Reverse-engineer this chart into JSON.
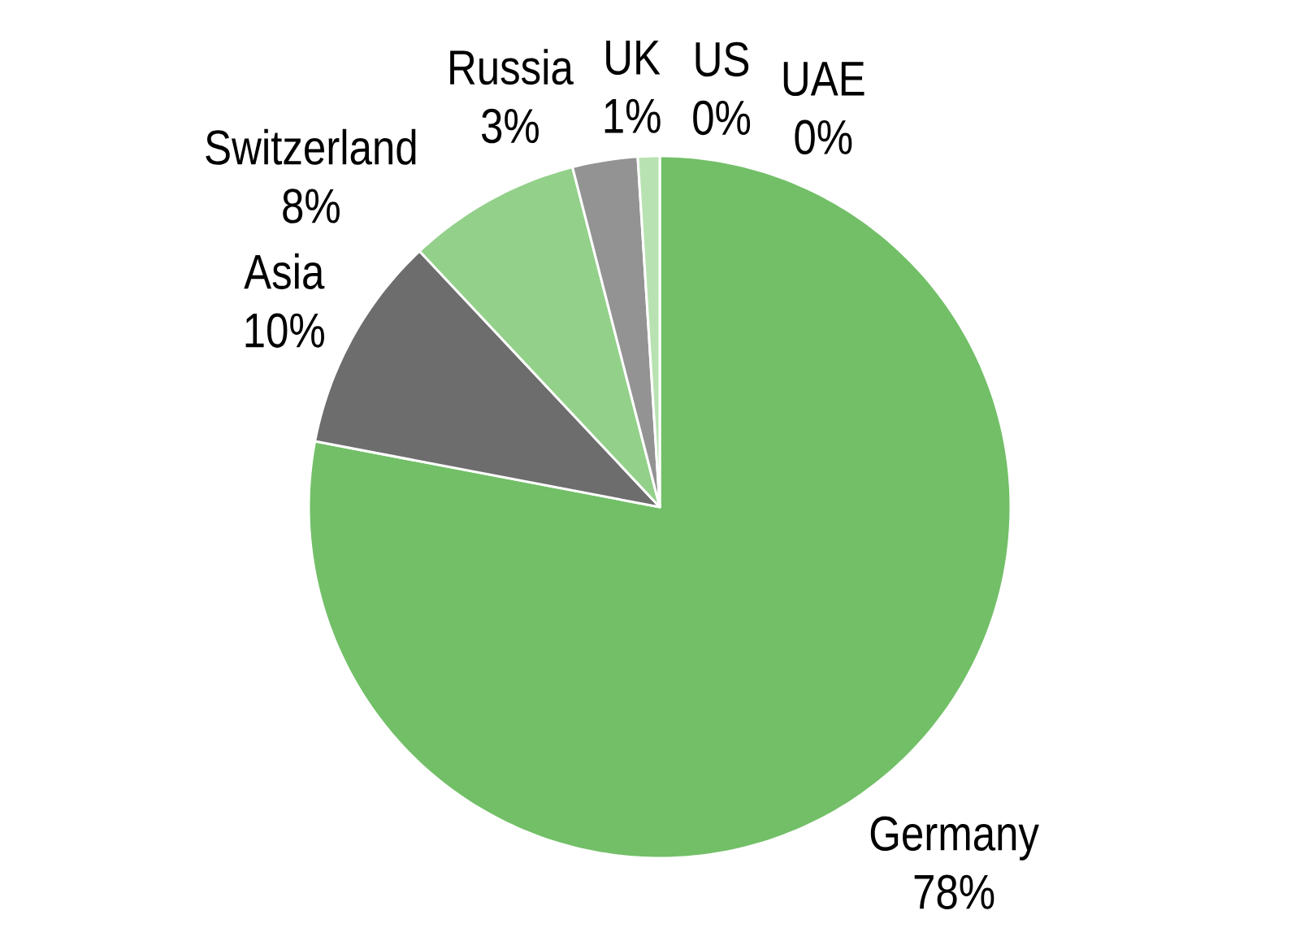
{
  "chart_data": {
    "type": "pie",
    "categories": [
      "Germany",
      "Asia",
      "Switzerland",
      "Russia",
      "UK",
      "US",
      "UAE"
    ],
    "values": [
      78,
      10,
      8,
      3,
      1,
      0,
      0
    ],
    "value_labels": [
      "78%",
      "10%",
      "8%",
      "3%",
      "1%",
      "0%",
      "0%"
    ],
    "colors": [
      "#72bf67",
      "#6d6d6d",
      "#93d08a",
      "#939393",
      "#b9e2b2",
      null,
      null
    ]
  }
}
